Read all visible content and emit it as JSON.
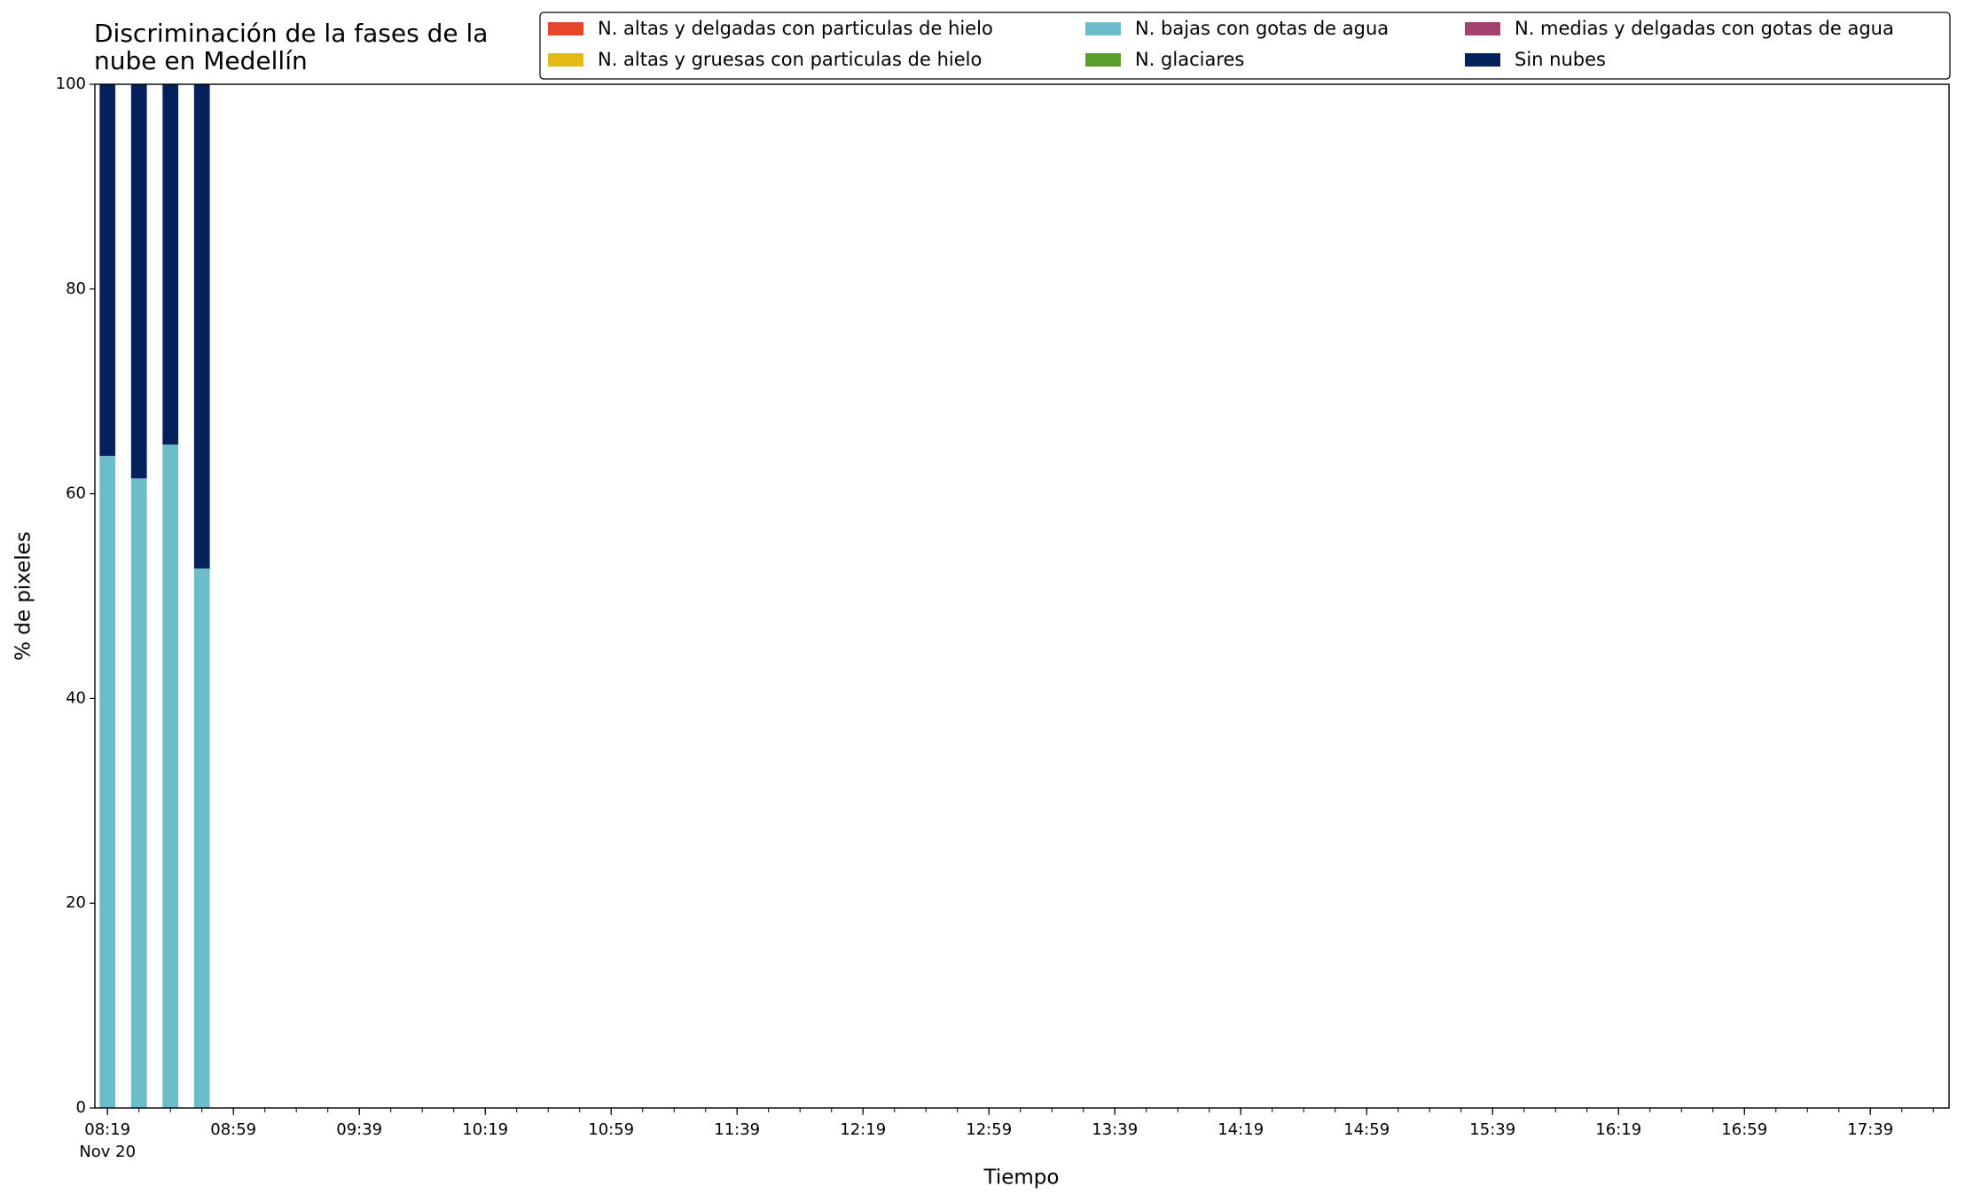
{
  "chart_data": {
    "type": "bar",
    "stacked": true,
    "title": "Discriminación de la fases de la\nnube en Medellín",
    "xlabel": "Tiempo",
    "ylabel": "% de pixeles",
    "x": [
      "08:19",
      "08:29",
      "08:39",
      "08:49"
    ],
    "x_date_label": "Nov 20",
    "series": [
      {
        "name": "N. altas y delgadas con particulas de hielo",
        "color": "#e8462a",
        "values": [
          0,
          0,
          0,
          0
        ]
      },
      {
        "name": "N. altas y gruesas con particulas de hielo",
        "color": "#e3b817",
        "values": [
          0,
          0,
          0,
          0
        ]
      },
      {
        "name": "N. bajas con gotas de agua",
        "color": "#6abdc9",
        "values": [
          63.7,
          61.5,
          64.8,
          52.7
        ]
      },
      {
        "name": "N. glaciares",
        "color": "#5c9e2e",
        "values": [
          0,
          0,
          0,
          0
        ]
      },
      {
        "name": "N. medias y delgadas con gotas de agua",
        "color": "#a2426f",
        "values": [
          0,
          0,
          0,
          0
        ]
      },
      {
        "name": "Sin nubes",
        "color": "#04215e",
        "values": [
          36.3,
          38.5,
          35.2,
          47.3
        ]
      }
    ],
    "xlim": [
      "08:15",
      "18:04"
    ],
    "xticks": [
      "08:19",
      "08:59",
      "09:39",
      "10:19",
      "10:59",
      "11:39",
      "12:19",
      "12:59",
      "13:39",
      "14:19",
      "14:59",
      "15:39",
      "16:19",
      "16:59",
      "17:39"
    ],
    "xminor_ticks": [
      "08:19",
      "08:29",
      "08:39",
      "08:49",
      "08:59",
      "09:09",
      "09:19",
      "09:29",
      "09:39",
      "09:49",
      "09:59",
      "10:09",
      "10:19",
      "10:29",
      "10:39",
      "10:49",
      "10:59",
      "11:09",
      "11:19",
      "11:29",
      "11:39",
      "11:49",
      "11:59",
      "12:09",
      "12:19",
      "12:29",
      "12:39",
      "12:49",
      "12:59",
      "13:09",
      "13:19",
      "13:29",
      "13:39",
      "13:49",
      "13:59",
      "14:09",
      "14:19",
      "14:29",
      "14:39",
      "14:49",
      "14:59",
      "15:09",
      "15:19",
      "15:29",
      "15:39",
      "15:49",
      "15:59",
      "16:09",
      "16:19",
      "16:29",
      "16:39",
      "16:49",
      "16:59",
      "17:09",
      "17:19",
      "17:29",
      "17:39",
      "17:49",
      "17:59"
    ],
    "ylim": [
      0,
      100
    ],
    "yticks": [
      0,
      20,
      40,
      60,
      80,
      100
    ],
    "grid": false,
    "legend_position": "upper right",
    "legend_columns": 3
  }
}
